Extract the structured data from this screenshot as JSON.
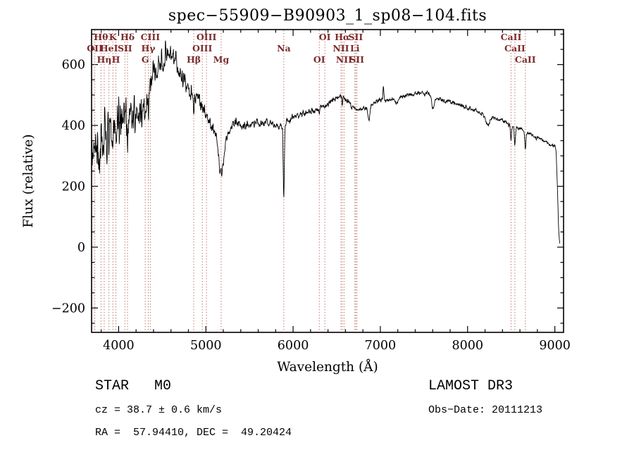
{
  "footer": {
    "class_label": "STAR   M0",
    "survey": "LAMOST DR3",
    "cz": "cz = 38.7 ± 0.6 km/s",
    "obs_date": "Obs−Date: 20111213",
    "radec": "RA =  57.94410, DEC =  49.20424"
  },
  "chart_data": {
    "type": "line",
    "title": "spec−55909−B90903_1_sp08−104.fits",
    "xlabel": "Wavelength (Å)",
    "ylabel": "Flux (relative)",
    "xlim": [
      3690,
      9100
    ],
    "ylim": [
      -280,
      715
    ],
    "x_major_ticks": [
      4000,
      5000,
      6000,
      7000,
      8000,
      9000
    ],
    "x_minor_step": 200,
    "y_major_ticks": [
      {
        "value": -200,
        "label": "−200"
      },
      {
        "value": 0,
        "label": "0"
      },
      {
        "value": 200,
        "label": "200"
      },
      {
        "value": 400,
        "label": "400"
      },
      {
        "value": 600,
        "label": "600"
      }
    ],
    "y_minor_step": 50,
    "grid": false,
    "legend": "none",
    "line_color": "#000000",
    "marker_line_color": "#c0776c",
    "marker_label_color": "#7b2b2b",
    "spectral_lines": [
      {
        "label": "OII",
        "wavelength": 3727,
        "row": 1
      },
      {
        "label": "Hθ",
        "wavelength": 3798,
        "row": 0
      },
      {
        "label": "Hη",
        "wavelength": 3835,
        "row": 2
      },
      {
        "label": "HeI",
        "wavelength": 3889,
        "row": 1
      },
      {
        "label": "K",
        "wavelength": 3934,
        "row": 0
      },
      {
        "label": "H",
        "wavelength": 3969,
        "row": 2
      },
      {
        "label": "SII",
        "wavelength": 4072,
        "row": 1
      },
      {
        "label": "Hδ",
        "wavelength": 4102,
        "row": 0
      },
      {
        "label": "G",
        "wavelength": 4305,
        "row": 2
      },
      {
        "label": "Hγ",
        "wavelength": 4340,
        "row": 1
      },
      {
        "label": "CIII",
        "wavelength": 4363,
        "row": 0
      },
      {
        "label": "Hβ",
        "wavelength": 4861,
        "row": 2
      },
      {
        "label": "OIII",
        "wavelength": 4959,
        "row": 1
      },
      {
        "label": "OIII",
        "wavelength": 5007,
        "row": 0
      },
      {
        "label": "Mg",
        "wavelength": 5175,
        "row": 2
      },
      {
        "label": "Na",
        "wavelength": 5893,
        "row": 1
      },
      {
        "label": "OI",
        "wavelength": 6300,
        "row": 2
      },
      {
        "label": "OI",
        "wavelength": 6364,
        "row": 0
      },
      {
        "label": "NII",
        "wavelength": 6548,
        "row": 1
      },
      {
        "label": "Hα",
        "wavelength": 6563,
        "row": 0
      },
      {
        "label": "NII",
        "wavelength": 6584,
        "row": 2
      },
      {
        "label": "Li",
        "wavelength": 6708,
        "row": 1
      },
      {
        "label": "SII",
        "wavelength": 6717,
        "row": 0
      },
      {
        "label": "SII",
        "wavelength": 6731,
        "row": 2
      },
      {
        "label": "CaII",
        "wavelength": 8498,
        "row": 0
      },
      {
        "label": "CaII",
        "wavelength": 8542,
        "row": 1
      },
      {
        "label": "CaII",
        "wavelength": 8662,
        "row": 2
      }
    ],
    "spectrum": {
      "seed": 20111213,
      "step": 3,
      "start": 3695,
      "end": 9058,
      "continuum_anchors": [
        [
          3690,
          300
        ],
        [
          3720,
          315
        ],
        [
          3760,
          325
        ],
        [
          3800,
          340
        ],
        [
          3850,
          360
        ],
        [
          3900,
          385
        ],
        [
          3950,
          405
        ],
        [
          4000,
          430
        ],
        [
          4050,
          450
        ],
        [
          4100,
          455
        ],
        [
          4150,
          430
        ],
        [
          4200,
          425
        ],
        [
          4250,
          455
        ],
        [
          4300,
          490
        ],
        [
          4350,
          525
        ],
        [
          4400,
          560
        ],
        [
          4450,
          590
        ],
        [
          4500,
          615
        ],
        [
          4550,
          630
        ],
        [
          4600,
          635
        ],
        [
          4650,
          620
        ],
        [
          4700,
          580
        ],
        [
          4750,
          545
        ],
        [
          4800,
          520
        ],
        [
          4861,
          500
        ],
        [
          4900,
          505
        ],
        [
          4950,
          470
        ],
        [
          5000,
          430
        ],
        [
          5050,
          400
        ],
        [
          5100,
          385
        ],
        [
          5150,
          362
        ],
        [
          5200,
          352
        ],
        [
          5250,
          375
        ],
        [
          5300,
          400
        ],
        [
          5350,
          405
        ],
        [
          5400,
          400
        ],
        [
          5450,
          398
        ],
        [
          5500,
          402
        ],
        [
          5550,
          405
        ],
        [
          5600,
          408
        ],
        [
          5650,
          405
        ],
        [
          5700,
          412
        ],
        [
          5750,
          408
        ],
        [
          5800,
          400
        ],
        [
          5850,
          398
        ],
        [
          5900,
          406
        ],
        [
          5950,
          416
        ],
        [
          6000,
          425
        ],
        [
          6100,
          436
        ],
        [
          6200,
          448
        ],
        [
          6300,
          456
        ],
        [
          6400,
          470
        ],
        [
          6450,
          480
        ],
        [
          6500,
          492
        ],
        [
          6550,
          500
        ],
        [
          6600,
          488
        ],
        [
          6650,
          470
        ],
        [
          6700,
          456
        ],
        [
          6750,
          450
        ],
        [
          6800,
          455
        ],
        [
          6850,
          462
        ],
        [
          6900,
          470
        ],
        [
          6950,
          478
        ],
        [
          7000,
          485
        ],
        [
          7100,
          482
        ],
        [
          7200,
          490
        ],
        [
          7300,
          498
        ],
        [
          7400,
          505
        ],
        [
          7500,
          508
        ],
        [
          7550,
          505
        ],
        [
          7600,
          496
        ],
        [
          7650,
          490
        ],
        [
          7700,
          486
        ],
        [
          7750,
          481
        ],
        [
          7800,
          476
        ],
        [
          7900,
          468
        ],
        [
          8000,
          458
        ],
        [
          8100,
          448
        ],
        [
          8200,
          433
        ],
        [
          8300,
          425
        ],
        [
          8400,
          415
        ],
        [
          8500,
          400
        ],
        [
          8600,
          388
        ],
        [
          8700,
          372
        ],
        [
          8800,
          360
        ],
        [
          8900,
          346
        ],
        [
          8950,
          338
        ],
        [
          9000,
          330
        ],
        [
          9015,
          318
        ],
        [
          9030,
          190
        ],
        [
          9045,
          45
        ],
        [
          9058,
          5
        ]
      ],
      "noise_anchors": [
        [
          3690,
          130
        ],
        [
          3800,
          120
        ],
        [
          3900,
          100
        ],
        [
          4000,
          90
        ],
        [
          4100,
          80
        ],
        [
          4300,
          62
        ],
        [
          4500,
          48
        ],
        [
          4700,
          42
        ],
        [
          4900,
          34
        ],
        [
          5100,
          28
        ],
        [
          5300,
          24
        ],
        [
          5500,
          19
        ],
        [
          5800,
          15
        ],
        [
          6200,
          13
        ],
        [
          6600,
          11
        ],
        [
          7000,
          10
        ],
        [
          7500,
          9
        ],
        [
          8000,
          9
        ],
        [
          8500,
          10
        ],
        [
          9000,
          8
        ],
        [
          9058,
          4
        ]
      ],
      "features": [
        {
          "center": 3934,
          "depth": 110,
          "width": 6
        },
        {
          "center": 3969,
          "depth": 110,
          "width": 6
        },
        {
          "center": 4102,
          "depth": 85,
          "width": 6
        },
        {
          "center": 4305,
          "depth": 60,
          "width": 9
        },
        {
          "center": 4340,
          "depth": 85,
          "width": 6
        },
        {
          "center": 4861,
          "depth": 65,
          "width": 7
        },
        {
          "center": 5175,
          "depth": 120,
          "width": 28
        },
        {
          "center": 5893,
          "depth": 255,
          "width": 6
        },
        {
          "center": 6300,
          "depth": 22,
          "width": 5
        },
        {
          "center": 6563,
          "depth": 30,
          "width": 5
        },
        {
          "center": 6868,
          "depth": 50,
          "width": 11
        },
        {
          "center": 7035,
          "depth": -50,
          "width": 4
        },
        {
          "center": 7190,
          "depth": 22,
          "width": 14
        },
        {
          "center": 7605,
          "depth": 42,
          "width": 13
        },
        {
          "center": 8230,
          "depth": 28,
          "width": 22
        },
        {
          "center": 8498,
          "depth": 58,
          "width": 6
        },
        {
          "center": 8542,
          "depth": 62,
          "width": 6
        },
        {
          "center": 8662,
          "depth": 58,
          "width": 6
        }
      ]
    }
  }
}
